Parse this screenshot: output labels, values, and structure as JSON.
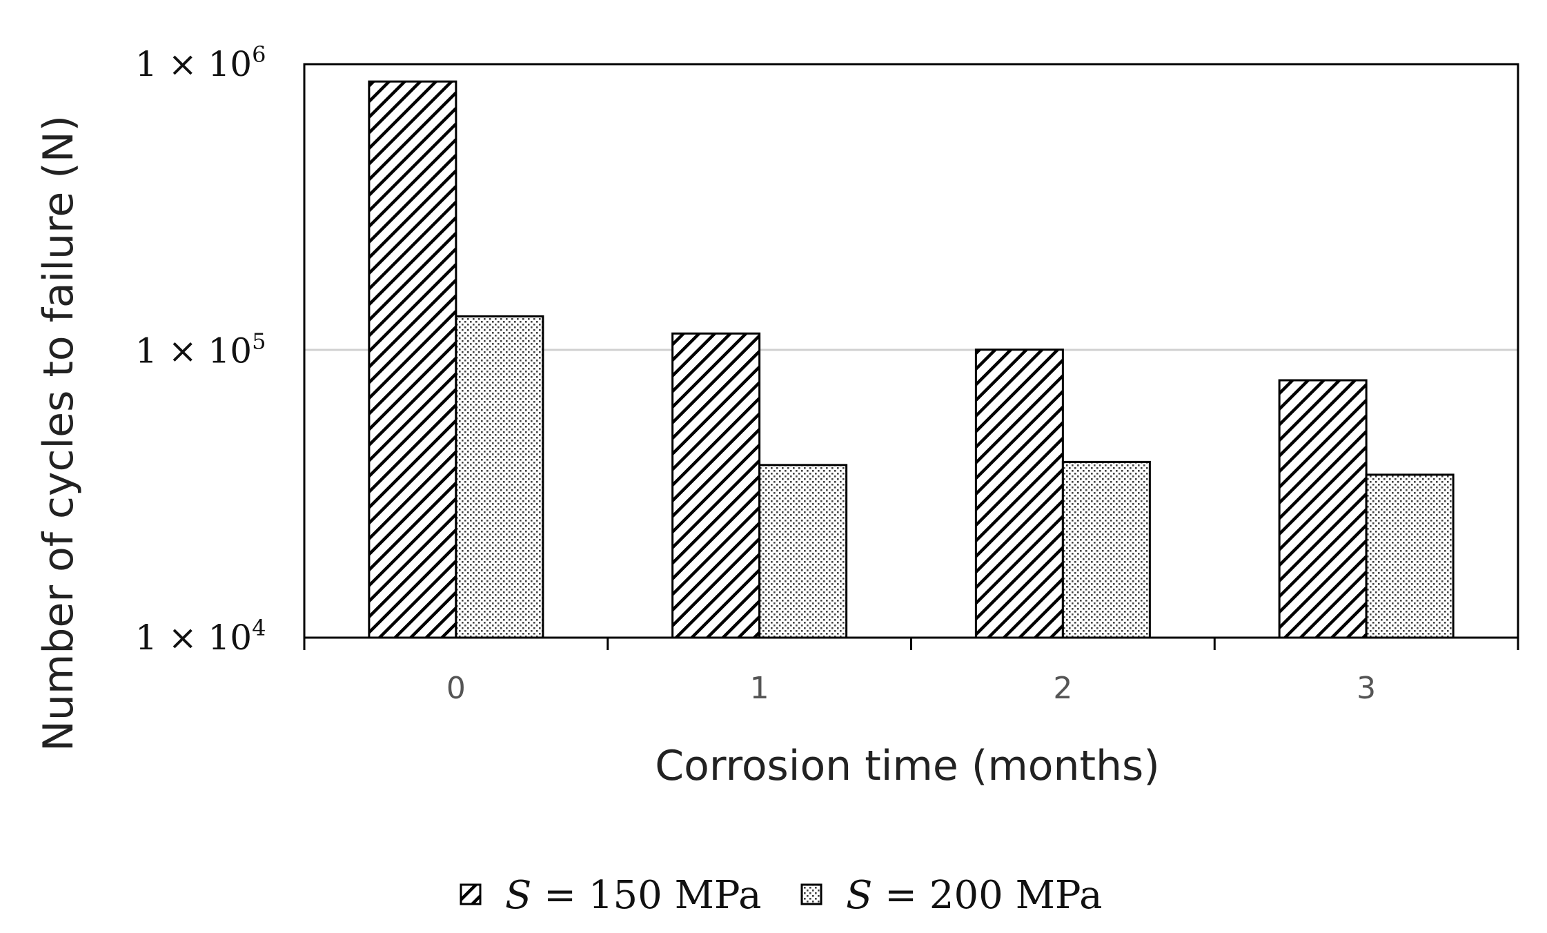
{
  "chart_data": {
    "type": "bar",
    "title": "",
    "xlabel": "Corrosion time (months)",
    "ylabel": "Number of cycles to failure (N)",
    "categories": [
      "0",
      "1",
      "2",
      "3"
    ],
    "y_scale": "log",
    "ylim": [
      10000,
      1000000
    ],
    "y_ticks": [
      {
        "value": 1000000,
        "mantissa": "1 × 10",
        "exponent": "6"
      },
      {
        "value": 100000,
        "mantissa": "1 × 10",
        "exponent": "5"
      },
      {
        "value": 10000,
        "mantissa": "1 × 10",
        "exponent": "4"
      }
    ],
    "gridlines": "horizontal at major ticks",
    "legend_position": "bottom-center",
    "series": [
      {
        "name_italic": "S",
        "name_rest": " = 150 MPa",
        "pattern": "diagonal-hatch",
        "values": [
          870000,
          115000,
          101000,
          79000
        ]
      },
      {
        "name_italic": "S",
        "name_rest": " = 200 MPa",
        "pattern": "dotted",
        "values": [
          132000,
          40000,
          41000,
          37000
        ]
      }
    ]
  }
}
